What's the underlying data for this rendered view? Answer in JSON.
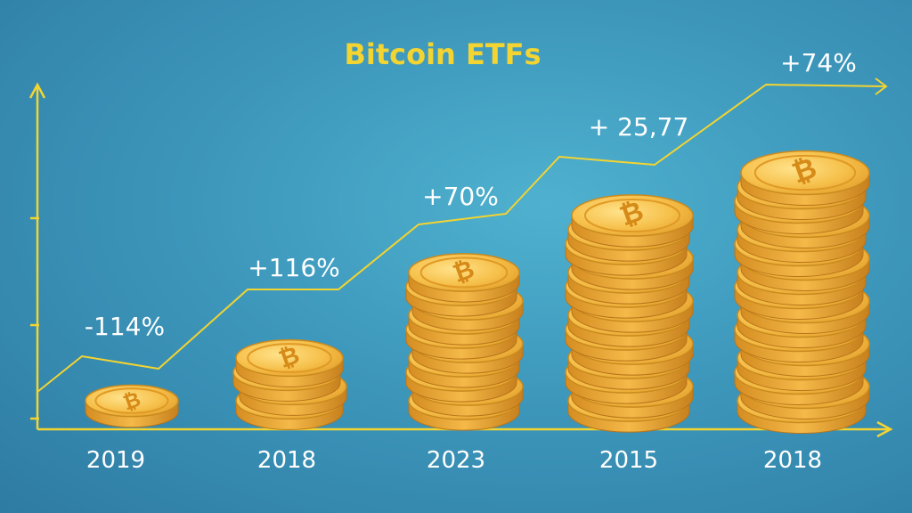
{
  "chart_data": {
    "type": "bar",
    "title": "Bitcoin ETFs",
    "categories": [
      "2019",
      "2018",
      "2023",
      "2015",
      "2018"
    ],
    "values": [
      1,
      4,
      10,
      14,
      17
    ],
    "data_labels": [
      "-114%",
      "+116%",
      "+70%",
      "+ 25,77",
      "+74%"
    ],
    "value_unit": "stacked coins",
    "trend_line": true,
    "grid": false,
    "xlabel": "",
    "ylabel": ""
  },
  "colors": {
    "accent": "#f3d431",
    "background": "#3d97bb",
    "coin": "#f2b53a",
    "coin_edge": "#c98a1f",
    "text": "#ffffff"
  }
}
